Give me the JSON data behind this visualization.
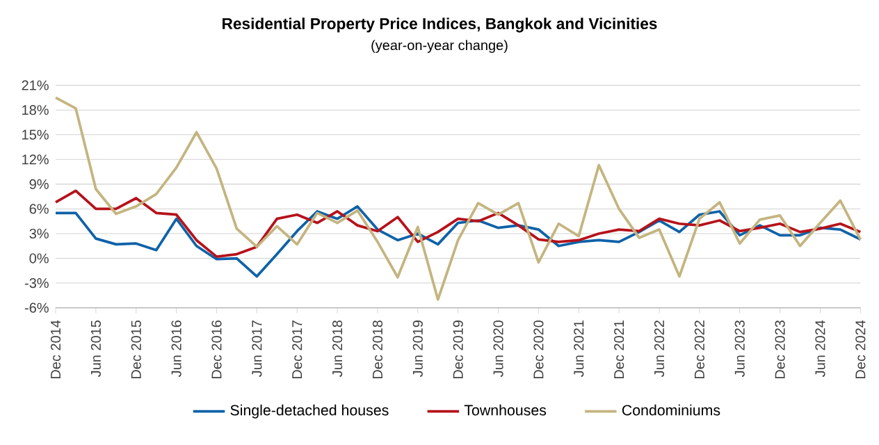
{
  "chart_data": {
    "type": "line",
    "title": "Residential Property Price Indices, Bangkok and Vicinities",
    "subtitle": "(year-on-year  change)",
    "categories": [
      "Dec 2014",
      null,
      "Jun 2015",
      null,
      "Dec 2015",
      null,
      "Jun 2016",
      null,
      "Dec 2016",
      null,
      "Jun 2017",
      null,
      "Dec 2017",
      null,
      "Jun 2018",
      null,
      "Dec 2018",
      null,
      "Jun 2019",
      null,
      "Dec 2019",
      null,
      "Jun 2020",
      null,
      "Dec 2020",
      null,
      "Jun 2021",
      null,
      "Dec 2021",
      null,
      "Jun 2022",
      null,
      "Dec 2022",
      null,
      "Jun 2023",
      null,
      "Dec 2023",
      null,
      "Jun 2024",
      null,
      "Dec 2024"
    ],
    "series": [
      {
        "name": "Single-detached houses",
        "color": "#0e62a8",
        "values": [
          5.5,
          5.5,
          2.4,
          1.7,
          1.8,
          1.0,
          4.8,
          1.5,
          -0.1,
          0.0,
          -2.2,
          0.5,
          3.3,
          5.7,
          4.8,
          6.3,
          3.5,
          2.2,
          3.0,
          1.7,
          4.3,
          4.6,
          3.7,
          4.0,
          3.5,
          1.5,
          2.0,
          2.2,
          2.0,
          3.2,
          4.6,
          3.2,
          5.3,
          5.7,
          2.8,
          4.0,
          2.8,
          2.8,
          3.7,
          3.5,
          2.3
        ]
      },
      {
        "name": "Townhouses",
        "color": "#b5121b",
        "values": [
          6.8,
          8.2,
          6.0,
          6.0,
          7.3,
          5.5,
          5.3,
          2.2,
          0.2,
          0.5,
          1.4,
          4.8,
          5.3,
          4.3,
          5.7,
          4.0,
          3.3,
          5.0,
          2.0,
          3.2,
          4.8,
          4.5,
          5.5,
          4.0,
          2.3,
          2.0,
          2.2,
          3.0,
          3.5,
          3.3,
          4.8,
          4.2,
          4.0,
          4.6,
          3.3,
          3.7,
          4.2,
          3.2,
          3.6,
          4.2,
          3.2
        ]
      },
      {
        "name": "Condominiums",
        "color": "#c4b47f",
        "values": [
          19.5,
          18.2,
          8.4,
          5.4,
          6.3,
          7.8,
          11.0,
          15.3,
          10.9,
          3.6,
          1.4,
          3.9,
          1.7,
          5.5,
          4.3,
          5.8,
          2.0,
          -2.3,
          3.8,
          -5.0,
          2.2,
          6.7,
          5.3,
          6.7,
          -0.5,
          4.2,
          2.7,
          11.3,
          6.0,
          2.5,
          3.5,
          -2.2,
          4.8,
          6.8,
          1.8,
          4.7,
          5.2,
          1.5,
          4.3,
          7.0,
          2.3
        ]
      }
    ],
    "ylim": [
      -6,
      21
    ],
    "yticks": [
      {
        "value": -6,
        "label": "-6%"
      },
      {
        "value": -3,
        "label": "-3%"
      },
      {
        "value": 0,
        "label": "0%"
      },
      {
        "value": 3,
        "label": "3%"
      },
      {
        "value": 6,
        "label": "6%"
      },
      {
        "value": 9,
        "label": "9%"
      },
      {
        "value": 12,
        "label": "12%"
      },
      {
        "value": 15,
        "label": "15%"
      },
      {
        "value": 18,
        "label": "18%"
      },
      {
        "value": 21,
        "label": "21%"
      }
    ],
    "grid": "y",
    "legend": "bottom",
    "marker": "none",
    "line_style": "solid"
  }
}
